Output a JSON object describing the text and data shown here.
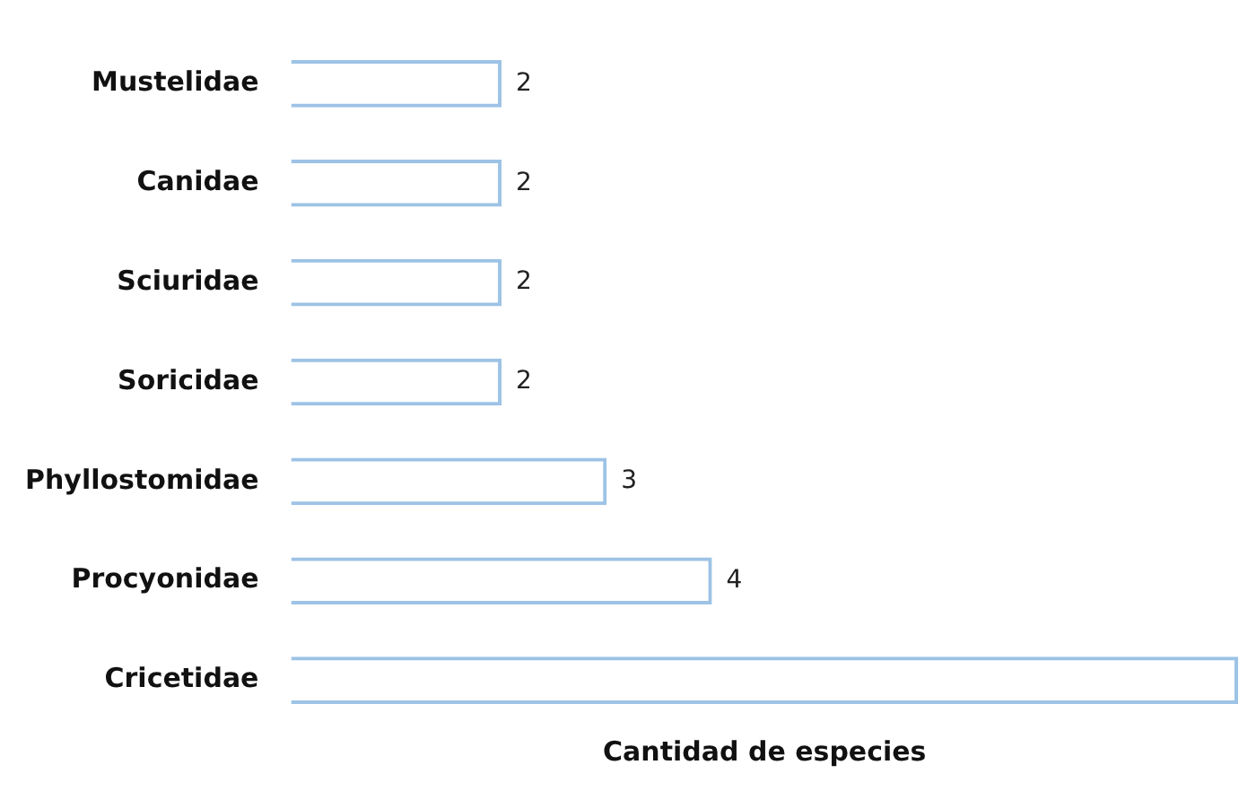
{
  "chart_data": {
    "type": "bar",
    "orientation": "horizontal",
    "xlabel": "Cantidad de especies",
    "categories": [
      "Mustelidae",
      "Canidae",
      "Sciuridae",
      "Soricidae",
      "Phyllostomidae",
      "Procyonidae",
      "Cricetidae"
    ],
    "values": [
      2,
      2,
      2,
      2,
      3,
      4,
      9
    ],
    "value_labels": [
      "2",
      "2",
      "2",
      "2",
      "3",
      "4",
      null
    ],
    "color": "#9dc3e6",
    "tick_labels": "y",
    "grid": false,
    "legend": false
  }
}
